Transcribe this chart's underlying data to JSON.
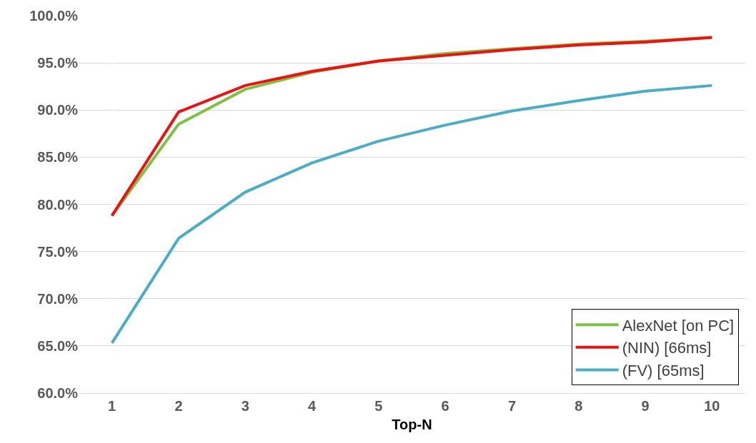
{
  "chart_data": {
    "type": "line",
    "xlabel": "Top-N",
    "categories": [
      "1",
      "2",
      "3",
      "4",
      "5",
      "6",
      "7",
      "8",
      "9",
      "10"
    ],
    "series": [
      {
        "name": "AlexNet [on PC]",
        "color": "#7dc242",
        "values": [
          78.8,
          88.5,
          92.2,
          94.0,
          95.2,
          96.0,
          96.5,
          97.0,
          97.3,
          97.7
        ]
      },
      {
        "name": "(NIN) [66ms]",
        "color": "#ee1111",
        "values": [
          78.8,
          89.8,
          92.6,
          94.1,
          95.2,
          95.8,
          96.4,
          96.9,
          97.2,
          97.7
        ]
      },
      {
        "name": "(FV) [65ms]",
        "color": "#4bacc6",
        "values": [
          65.3,
          76.4,
          81.3,
          84.4,
          86.7,
          88.4,
          89.9,
          91.0,
          92.0,
          92.6
        ]
      }
    ],
    "ylim": [
      60,
      100
    ],
    "yticks": [
      {
        "value": 60,
        "label": "60.0%"
      },
      {
        "value": 65,
        "label": "65.0%"
      },
      {
        "value": 70,
        "label": "70.0%"
      },
      {
        "value": 75,
        "label": "75.0%"
      },
      {
        "value": 80,
        "label": "80.0%"
      },
      {
        "value": 85,
        "label": "85.0%"
      },
      {
        "value": 90,
        "label": "90.0%"
      },
      {
        "value": 95,
        "label": "95.0%"
      },
      {
        "value": 100,
        "label": "100.0%"
      }
    ],
    "grid": "y",
    "legend": "bottom right",
    "marker": "none",
    "line_style": "solid"
  }
}
